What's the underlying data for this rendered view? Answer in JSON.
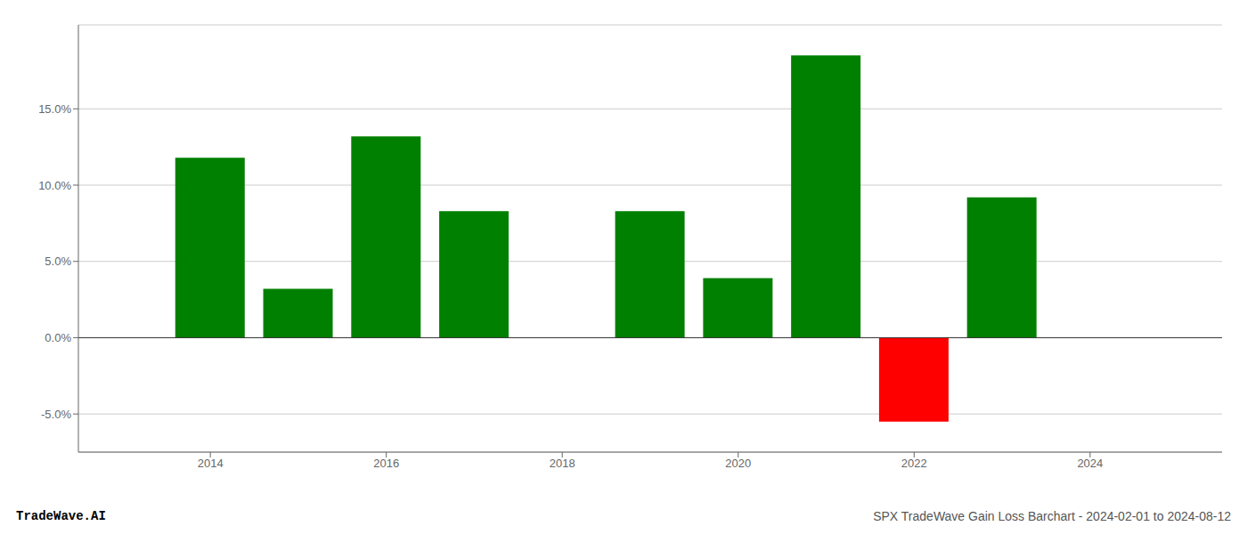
{
  "chart_data": {
    "type": "bar",
    "x": [
      2014,
      2015,
      2016,
      2017,
      2019,
      2020,
      2021,
      2022,
      2023
    ],
    "values": [
      0.118,
      0.032,
      0.132,
      0.083,
      0.083,
      0.039,
      0.185,
      -0.055,
      0.092
    ],
    "colors": [
      "#008000",
      "#008000",
      "#008000",
      "#008000",
      "#008000",
      "#008000",
      "#008000",
      "#ff0000",
      "#008000"
    ],
    "xlim": [
      2012.5,
      2025.5
    ],
    "ylim": [
      -0.075,
      0.205
    ],
    "xticks": [
      2014,
      2016,
      2018,
      2020,
      2022,
      2024
    ],
    "yticks": [
      {
        "value": -0.05,
        "label": "-5.0%"
      },
      {
        "value": 0.0,
        "label": "0.0%"
      },
      {
        "value": 0.05,
        "label": "5.0%"
      },
      {
        "value": 0.1,
        "label": "10.0%"
      },
      {
        "value": 0.15,
        "label": "15.0%"
      }
    ],
    "grid": "y",
    "annotations": [
      "TradeWave.AI",
      "SPX TradeWave Gain Loss Barchart - 2024-02-01 to 2024-08-12"
    ]
  }
}
